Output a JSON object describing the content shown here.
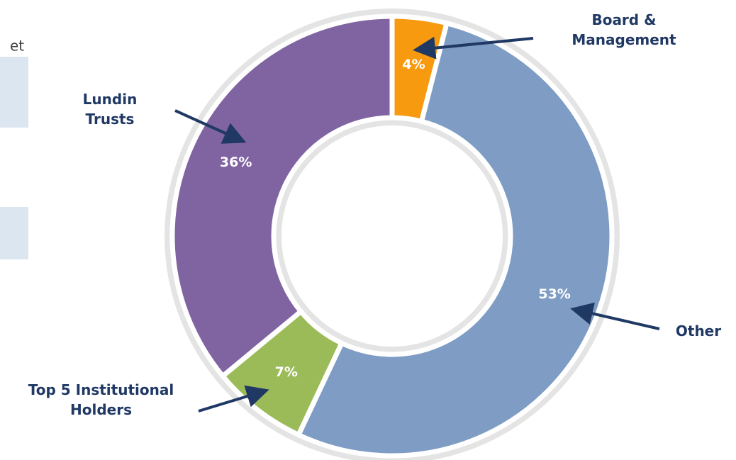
{
  "cropped_text": "et",
  "chart_data": {
    "type": "pie",
    "categories": [
      "Board & Management",
      "Other",
      "Top 5 Institutional Holders",
      "Lundin Trusts"
    ],
    "values": [
      4,
      53,
      7,
      36
    ],
    "value_labels": [
      "4%",
      "53%",
      "7%",
      "36%"
    ],
    "colors": [
      "#f79a0f",
      "#7f9dc4",
      "#9bbb59",
      "#8064a2"
    ],
    "donut": true
  }
}
